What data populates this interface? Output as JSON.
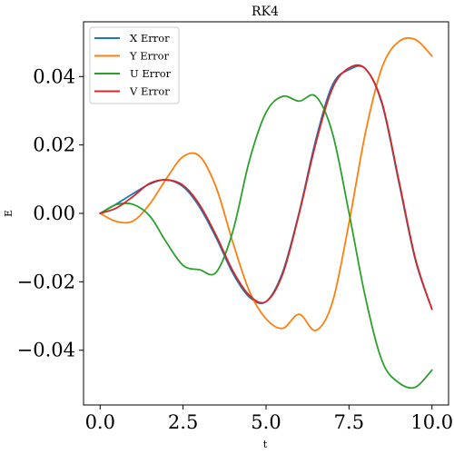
{
  "chart_data": {
    "type": "line",
    "title": "RK4",
    "xlabel": "t",
    "ylabel": "E",
    "xlim": [
      -0.5,
      10.5
    ],
    "ylim": [
      -0.056,
      0.056
    ],
    "xticks": [
      0.0,
      2.5,
      5.0,
      7.5,
      10.0
    ],
    "xtick_labels": [
      "0.0",
      "2.5",
      "5.0",
      "7.5",
      "10.0"
    ],
    "yticks": [
      -0.04,
      -0.02,
      0.0,
      0.02,
      0.04
    ],
    "ytick_labels": [
      "−0.04",
      "−0.02",
      "0.00",
      "0.02",
      "0.04"
    ],
    "grid": false,
    "legend_position": "top-left",
    "x": [
      0.0,
      0.5,
      1.0,
      1.5,
      2.0,
      2.5,
      3.0,
      3.5,
      4.0,
      4.5,
      5.0,
      5.5,
      6.0,
      6.5,
      7.0,
      7.5,
      8.0,
      8.5,
      9.0,
      9.5,
      10.0
    ],
    "series": [
      {
        "name": "X Error",
        "color": "#1f77b4",
        "values": [
          0.0,
          0.0028,
          0.0058,
          0.0086,
          0.0098,
          0.0078,
          0.0018,
          -0.0072,
          -0.0175,
          -0.0245,
          -0.0258,
          -0.0172,
          0.0004,
          0.0215,
          0.0375,
          0.042,
          0.0422,
          0.0318,
          0.0092,
          -0.0136,
          -0.028
        ]
      },
      {
        "name": "Y Error",
        "color": "#ff7f0e",
        "values": [
          0.0,
          -0.0024,
          -0.0022,
          0.0028,
          0.0102,
          0.0166,
          0.0167,
          0.0075,
          -0.0085,
          -0.0228,
          -0.0308,
          -0.0336,
          -0.0295,
          -0.0342,
          -0.026,
          -0.0028,
          0.0238,
          0.0428,
          0.0502,
          0.0508,
          0.046
        ]
      },
      {
        "name": "U Error",
        "color": "#2ca02c",
        "values": [
          0.0,
          0.0026,
          0.0026,
          -0.0008,
          -0.0085,
          -0.0152,
          -0.0165,
          -0.0172,
          -0.0052,
          0.0155,
          0.0295,
          0.0342,
          0.0328,
          0.0342,
          0.0235,
          0.0002,
          -0.0248,
          -0.0432,
          -0.0495,
          -0.0508,
          -0.0458
        ]
      },
      {
        "name": "V Error",
        "color": "#d62728",
        "values": [
          0.0,
          0.0016,
          0.005,
          0.0088,
          0.0098,
          0.0082,
          0.0025,
          -0.0065,
          -0.0168,
          -0.024,
          -0.0258,
          -0.0178,
          0.0,
          0.0205,
          0.0365,
          0.0425,
          0.0422,
          0.0322,
          0.0098,
          -0.0132,
          -0.028
        ]
      }
    ]
  }
}
